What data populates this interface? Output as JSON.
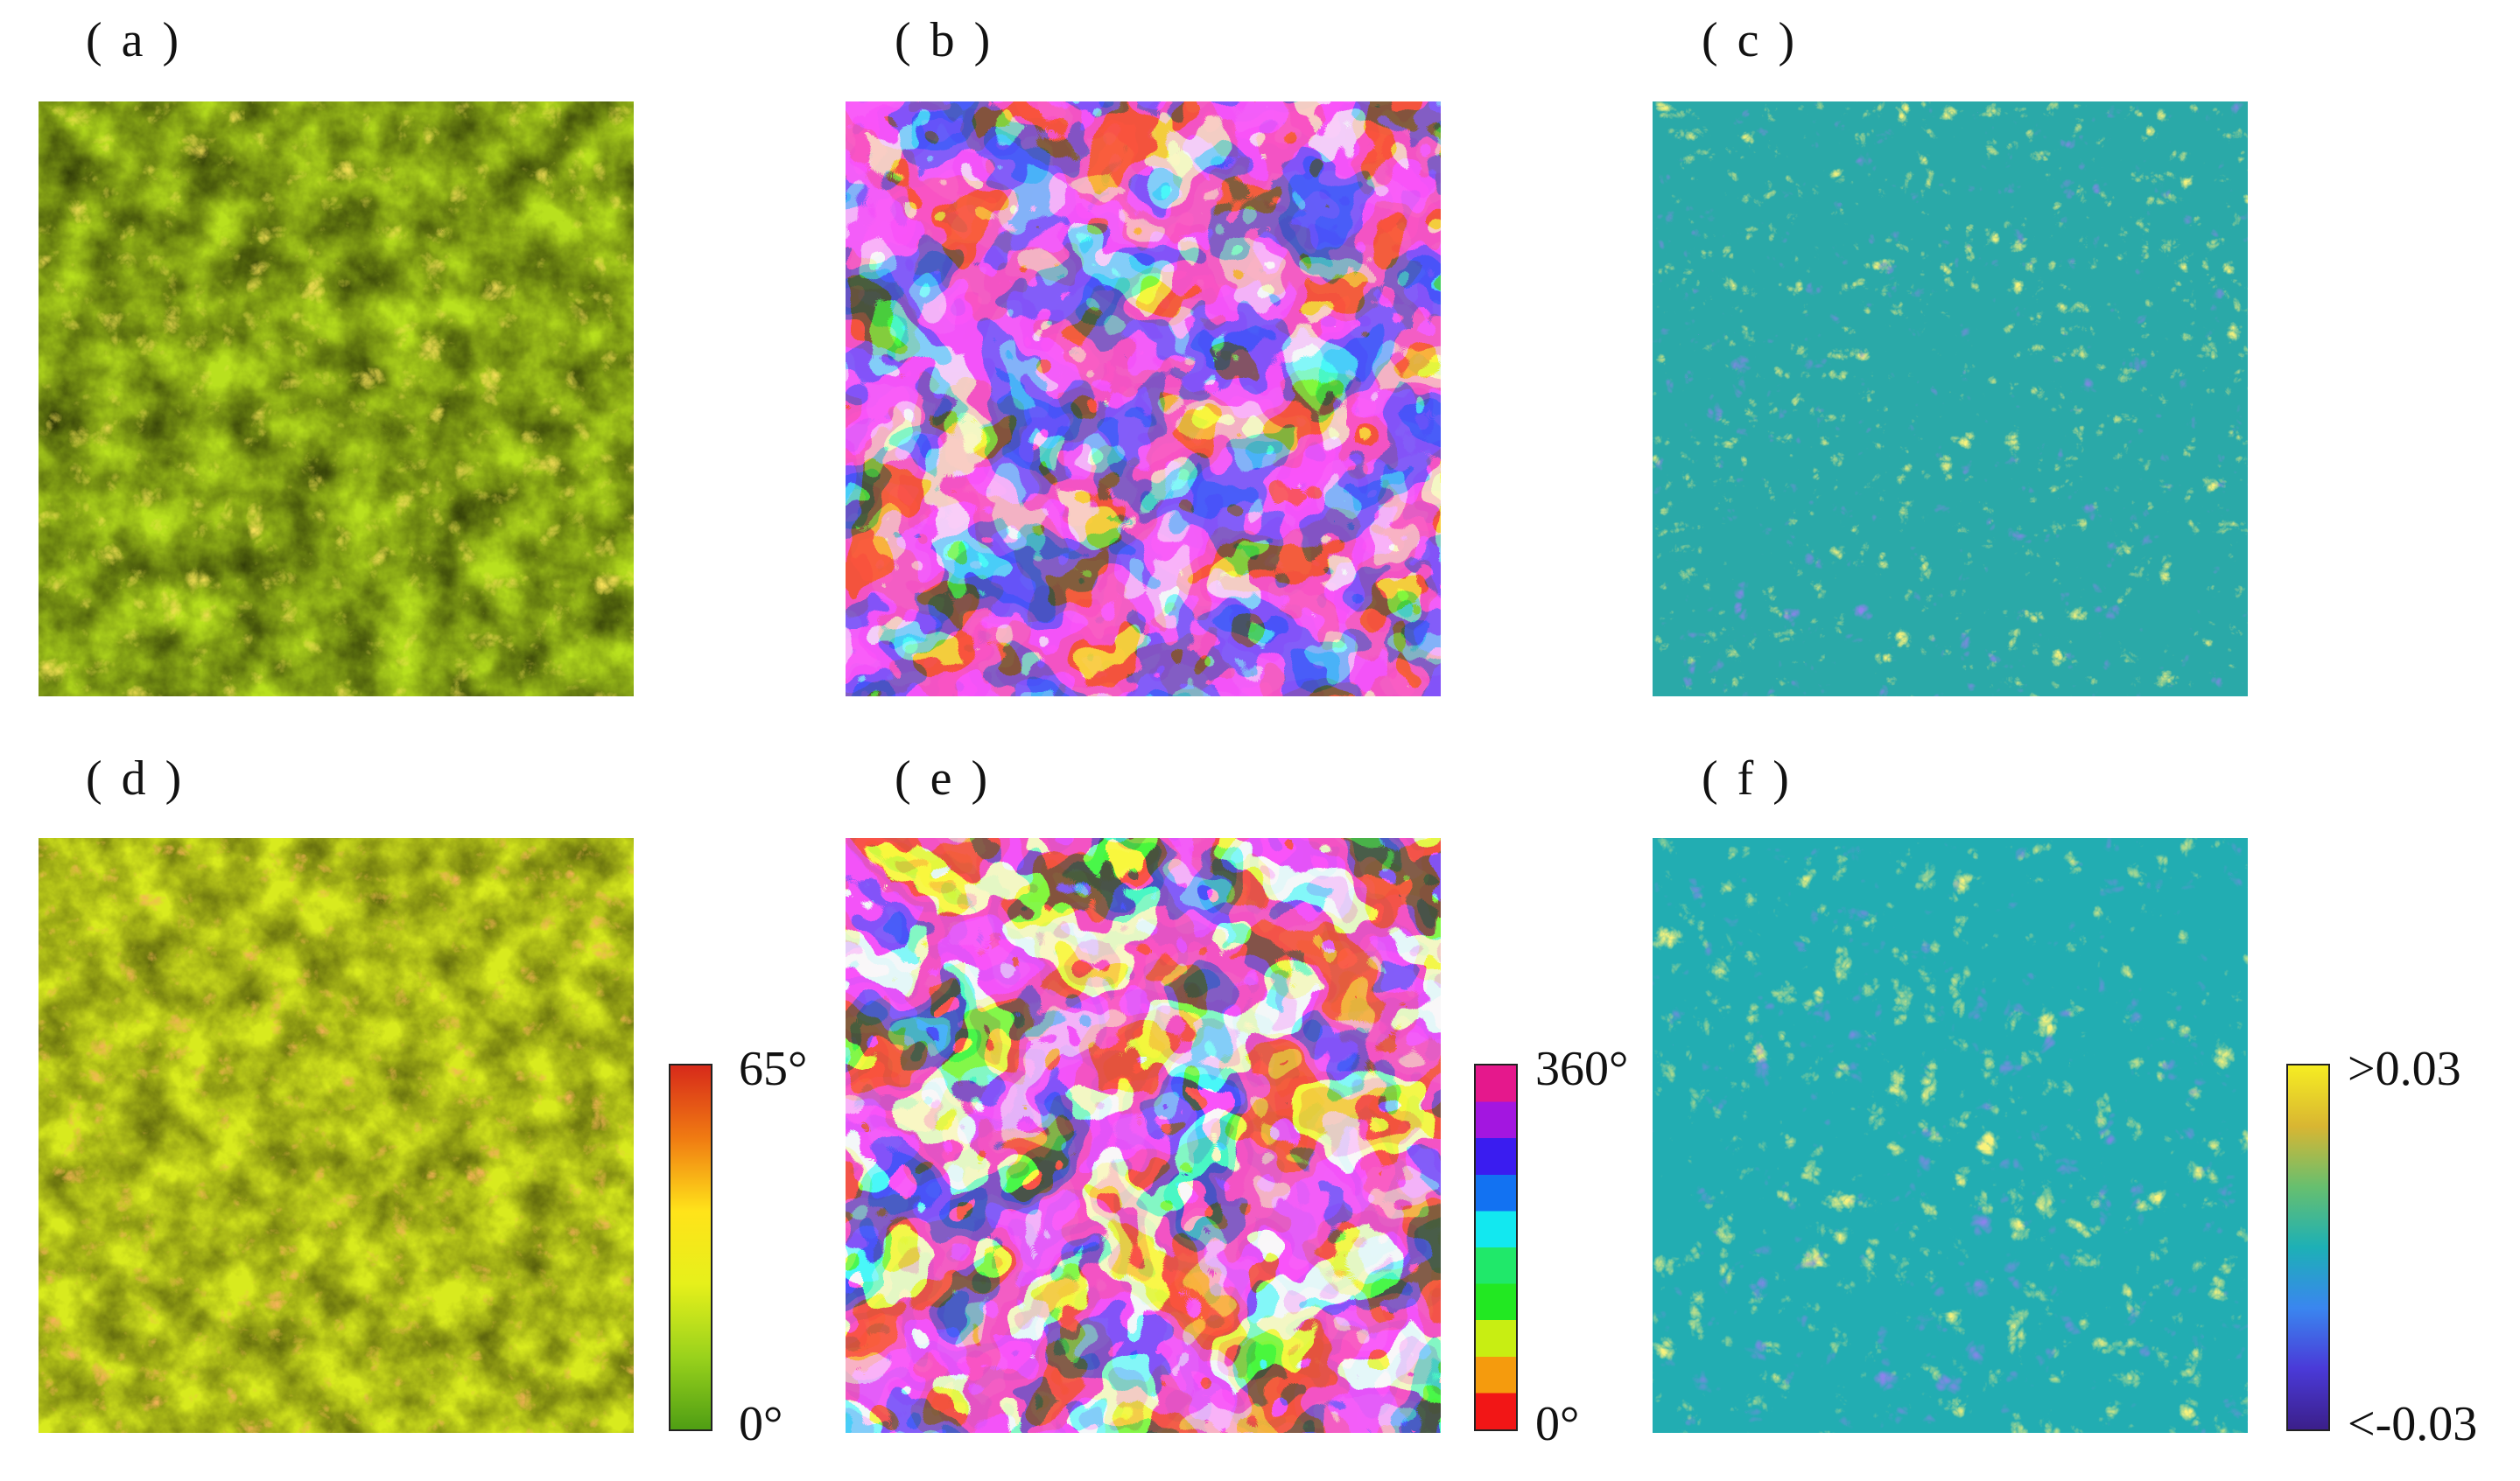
{
  "panels": [
    {
      "id": "a",
      "label": "( a )",
      "kind": "slope"
    },
    {
      "id": "b",
      "label": "( b )",
      "kind": "aspect"
    },
    {
      "id": "c",
      "label": "( c )",
      "kind": "curvature"
    },
    {
      "id": "d",
      "label": "( d )",
      "kind": "slope"
    },
    {
      "id": "e",
      "label": "( e )",
      "kind": "aspect"
    },
    {
      "id": "f",
      "label": "( f )",
      "kind": "curvature"
    }
  ],
  "legends": {
    "slope": {
      "max": "65°",
      "min": "0°",
      "colors": [
        "#d72a1a",
        "#f07b12",
        "#ffe31a",
        "#e6f01b",
        "#9ad21c",
        "#4f9e14"
      ]
    },
    "aspect": {
      "max": "360°",
      "min": "0°",
      "colors": [
        "#e5188c",
        "#a316e0",
        "#3a1cf0",
        "#1272f2",
        "#12e8f0",
        "#20e86a",
        "#22e822",
        "#c8ee12",
        "#f59b0d",
        "#f21616"
      ]
    },
    "curvature": {
      "max": ">0.03",
      "min": "<-0.03",
      "colors": [
        "#f6ed22",
        "#d9b632",
        "#67bf6f",
        "#1db0b6",
        "#3a86ef",
        "#4a3ad8",
        "#3b1f8a"
      ]
    }
  }
}
